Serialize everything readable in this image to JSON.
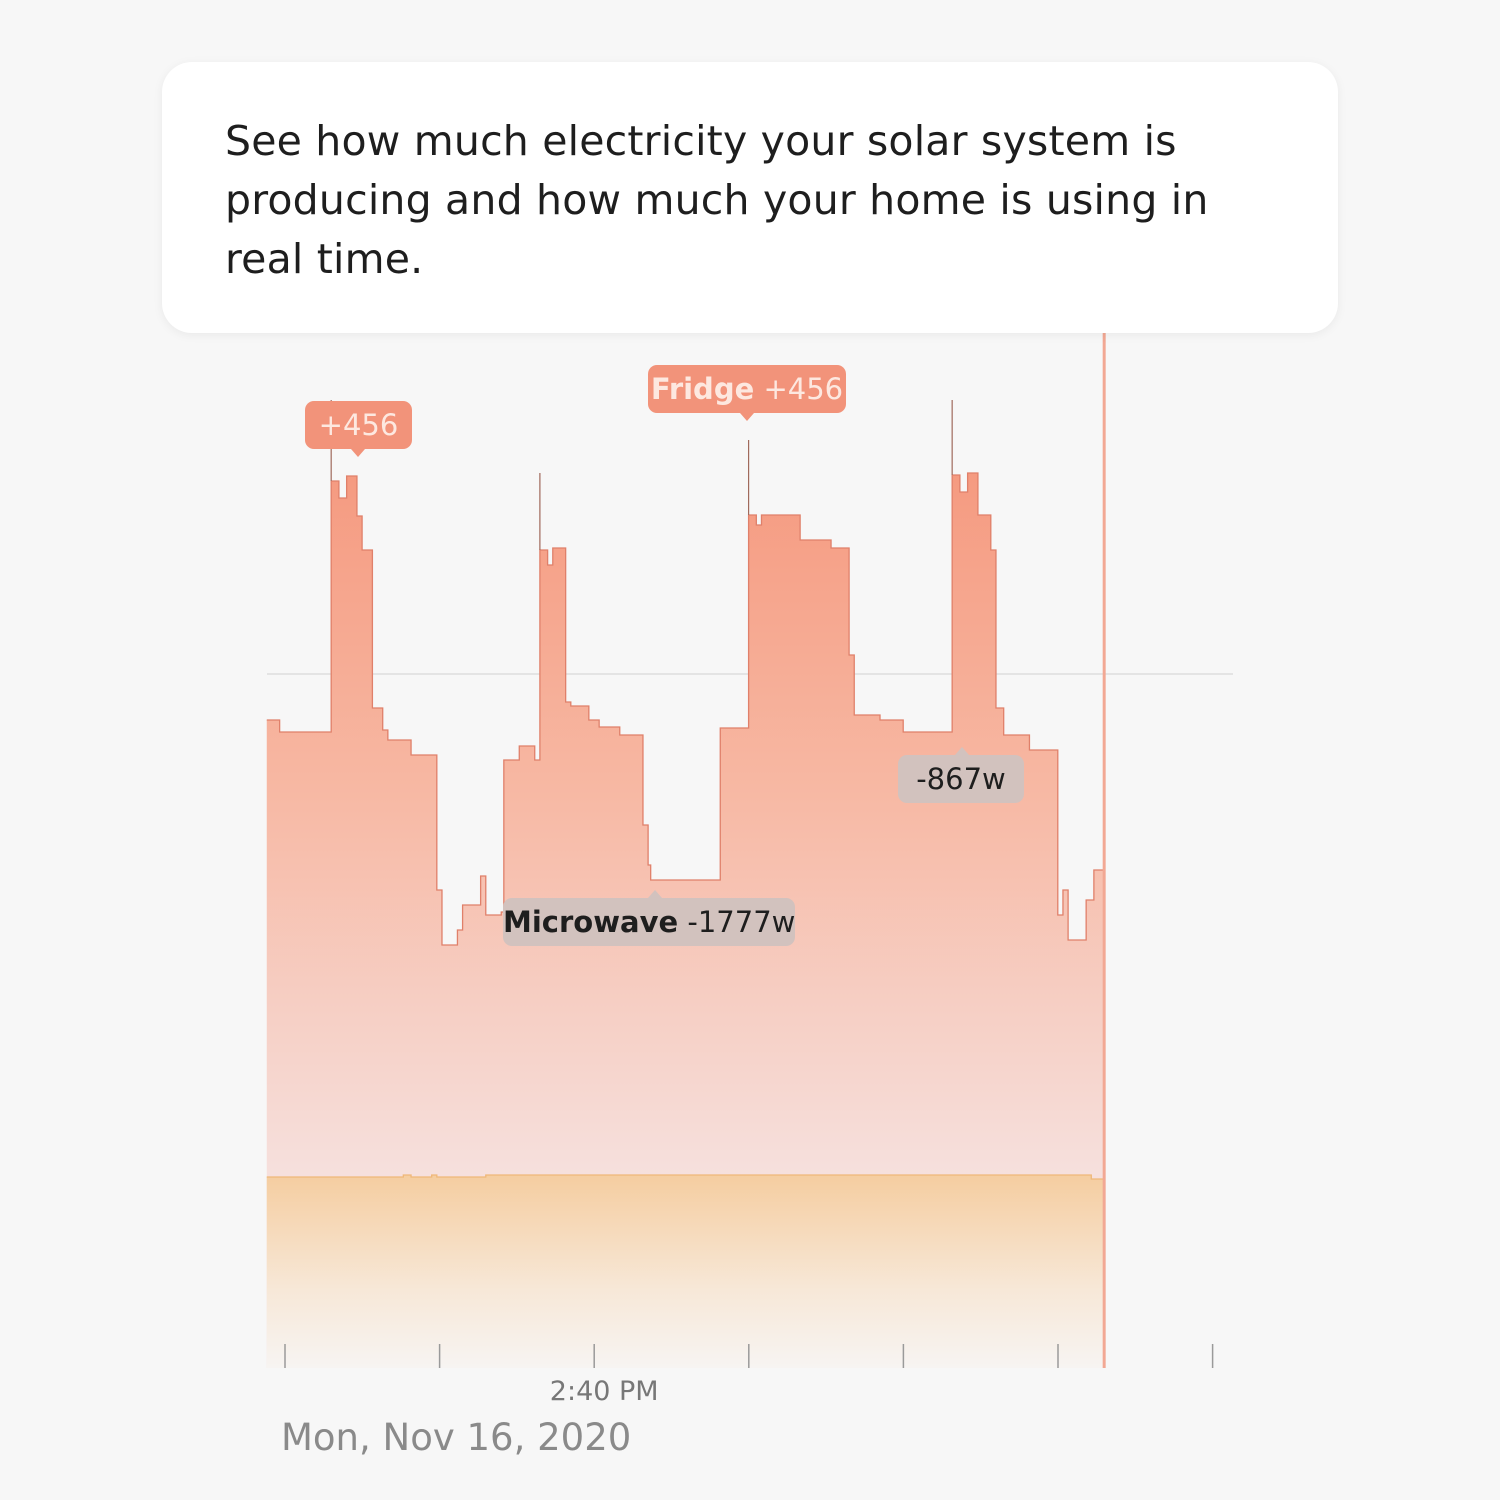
{
  "callout": {
    "text": "See how much electricity your solar system is producing and how much your home is using in real time."
  },
  "date_label": "Mon, Nov 16, 2020",
  "tooltips": [
    {
      "name": "",
      "value": "+456",
      "kind": "usage-spike",
      "color": "#f2937a"
    },
    {
      "name": "Fridge",
      "value": "+456",
      "kind": "usage-spike",
      "color": "#f2937a"
    },
    {
      "name": "",
      "value": "-867w",
      "kind": "usage-drop",
      "color": "#d2c2be"
    },
    {
      "name": "Microwave",
      "value": "-1777w",
      "kind": "usage-drop",
      "color": "#d2c2be"
    }
  ],
  "chart_data": {
    "type": "area",
    "step": true,
    "xlabel": "",
    "ylabel": "",
    "ylim": [
      0,
      1000
    ],
    "grid": "single horizontal reference line",
    "reference_line_y": 691,
    "x_ticks": [
      "14:38:00",
      "14:39:00",
      "14:40:00",
      "14:41:00",
      "14:42:00",
      "14:43:00",
      "14:44:00"
    ],
    "x_tick_labels": [
      "",
      "",
      "2:40 PM",
      "",
      "",
      "",
      ""
    ],
    "now_marker": "14:43:18",
    "colors": {
      "usage": "#f4977d",
      "solar": "#f3c58f",
      "now_line": "#f2a894",
      "background": "#f7f7f7"
    },
    "series": [
      {
        "role": "usage",
        "x": [
          "14:37:53",
          "14:37:58",
          "14:38:18",
          "14:38:21",
          "14:38:24",
          "14:38:28",
          "14:38:30",
          "14:38:34",
          "14:38:38",
          "14:38:40",
          "14:38:49",
          "14:38:59",
          "14:39:01",
          "14:39:07",
          "14:39:09",
          "14:39:16",
          "14:39:18",
          "14:39:24",
          "14:39:25",
          "14:39:31",
          "14:39:37",
          "14:39:39",
          "14:39:42",
          "14:39:44",
          "14:39:49",
          "14:39:51",
          "14:39:58",
          "14:40:02",
          "14:40:10",
          "14:40:19",
          "14:40:21",
          "14:40:22",
          "14:40:49",
          "14:41:00",
          "14:41:03",
          "14:41:05",
          "14:41:20",
          "14:41:32",
          "14:41:39",
          "14:41:41",
          "14:41:51",
          "14:42:00",
          "14:42:19",
          "14:42:22",
          "14:42:25",
          "14:42:29",
          "14:42:34",
          "14:42:36",
          "14:42:39",
          "14:42:49",
          "14:43:00",
          "14:43:02",
          "14:43:04",
          "14:43:11",
          "14:43:14",
          "14:43:18"
        ],
        "values": [
          645,
          633,
          884,
          867,
          889,
          849,
          815,
          657,
          635,
          625,
          610,
          475,
          420,
          435,
          460,
          489,
          450,
          453,
          605,
          619,
          605,
          815,
          800,
          817,
          663,
          659,
          645,
          638,
          630,
          540,
          500,
          485,
          637,
          850,
          840,
          850,
          825,
          817,
          710,
          650,
          645,
          633,
          890,
          873,
          892,
          850,
          815,
          657,
          630,
          615,
          450,
          475,
          425,
          465,
          495,
          495
        ],
        "spikes": [
          {
            "x": "14:38:18",
            "value": 965
          },
          {
            "x": "14:39:39",
            "value": 892
          },
          {
            "x": "14:41:00",
            "value": 925
          },
          {
            "x": "14:42:19",
            "value": 965
          }
        ]
      },
      {
        "role": "solar",
        "x": [
          "14:37:53",
          "14:38:46",
          "14:38:49",
          "14:38:57",
          "14:38:59",
          "14:39:18",
          "14:43:11",
          "14:43:13",
          "14:43:18"
        ],
        "values": [
          188,
          190,
          188,
          190,
          188,
          190,
          190,
          186,
          190
        ]
      }
    ],
    "annotations": [
      {
        "x": "14:38:28",
        "label": "+456"
      },
      {
        "x": "14:41:00",
        "label": "Fridge +456"
      },
      {
        "x": "14:42:23",
        "label": "-867w"
      },
      {
        "x": "14:40:23",
        "label": "Microwave -1777w"
      }
    ]
  }
}
